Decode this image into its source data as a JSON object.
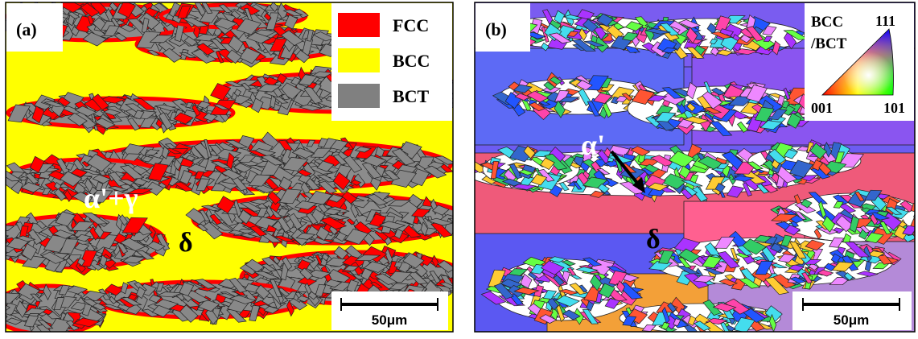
{
  "panels": [
    {
      "label": "(a)",
      "legend": [
        {
          "label": "FCC",
          "color": "#ff0000"
        },
        {
          "label": "BCC",
          "color": "#ffff00"
        },
        {
          "label": "BCT",
          "color": "#808080"
        }
      ],
      "annotations": [
        "α'+γ",
        "δ"
      ],
      "scale_bar": "50μm"
    },
    {
      "label": "(b)",
      "legend_title": [
        "BCC",
        "/BCT"
      ],
      "triangle_corners": [
        "111",
        "001",
        "101"
      ],
      "annotations": [
        "α'",
        "δ"
      ],
      "scale_bar": "50μm"
    }
  ]
}
